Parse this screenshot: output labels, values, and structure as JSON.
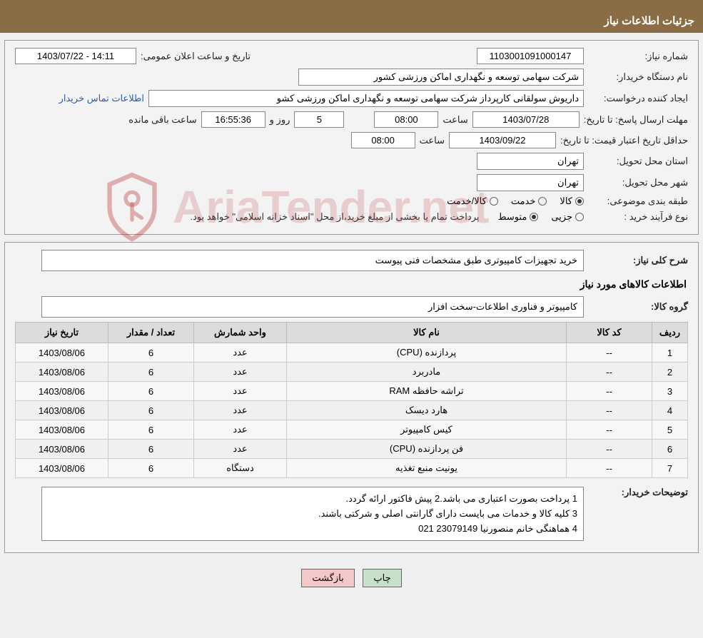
{
  "header": {
    "title": "جزئیات اطلاعات نیاز"
  },
  "form": {
    "need_no_label": "شماره نیاز:",
    "need_no": "1103001091000147",
    "announce_label": "تاریخ و ساعت اعلان عمومی:",
    "announce_val": "14:11 - 1403/07/22",
    "buyer_org_label": "نام دستگاه خریدار:",
    "buyer_org": "شرکت سهامی توسعه و نگهداری اماکن ورزشی کشور",
    "requester_label": "ایجاد کننده درخواست:",
    "requester": "داریوش سولقانی کارپرداز شرکت سهامی توسعه و نگهداری اماکن ورزشی کشو",
    "contact_link": "اطلاعات تماس خریدار",
    "deadline_label": "مهلت ارسال پاسخ: تا تاریخ:",
    "deadline_date": "1403/07/28",
    "time_word": "ساعت",
    "deadline_time": "08:00",
    "days_remaining": "5",
    "days_word": "روز و",
    "time_remaining": "16:55:36",
    "remaining_word": "ساعت باقی مانده",
    "validity_label": "حداقل تاریخ اعتبار قیمت: تا تاریخ:",
    "validity_date": "1403/09/22",
    "validity_time": "08:00",
    "province_label": "استان محل تحویل:",
    "province": "تهران",
    "city_label": "شهر محل تحویل:",
    "city": "تهران",
    "cat_label": "طبقه بندی موضوعی:",
    "cat_goods": "کالا",
    "cat_service": "خدمت",
    "cat_both": "کالا/خدمت",
    "proc_label": "نوع فرآیند خرید :",
    "proc_minor": "جزیی",
    "proc_medium": "متوسط",
    "proc_note": "پرداخت تمام یا بخشی از مبلغ خرید،از محل \"اسناد خزانه اسلامی\" خواهد بود."
  },
  "need": {
    "desc_label": "شرح کلی نیاز:",
    "desc": "خرید تجهیزات کامپیوتری طبق مشخصات فنی پیوست",
    "items_title": "اطلاعات کالاهای مورد نیاز",
    "group_label": "گروه کالا:",
    "group": "کامپیوتر و فناوری اطلاعات-سخت افزار"
  },
  "table": {
    "headers": [
      "ردیف",
      "کد کالا",
      "نام کالا",
      "واحد شمارش",
      "تعداد / مقدار",
      "تاریخ نیاز"
    ],
    "rows": [
      [
        "1",
        "--",
        "پردازنده (CPU)",
        "عدد",
        "6",
        "1403/08/06"
      ],
      [
        "2",
        "--",
        "مادربرد",
        "عدد",
        "6",
        "1403/08/06"
      ],
      [
        "3",
        "--",
        "تراشه حافظه RAM",
        "عدد",
        "6",
        "1403/08/06"
      ],
      [
        "4",
        "--",
        "هارد دیسک",
        "عدد",
        "6",
        "1403/08/06"
      ],
      [
        "5",
        "--",
        "کیس کامپیوتر",
        "عدد",
        "6",
        "1403/08/06"
      ],
      [
        "6",
        "--",
        "فن پردازنده (CPU)",
        "عدد",
        "6",
        "1403/08/06"
      ],
      [
        "7",
        "--",
        "یونیت منبع تغذیه",
        "دستگاه",
        "6",
        "1403/08/06"
      ]
    ]
  },
  "buyer_notes": {
    "label": "توضیحات خریدار:",
    "line1": "1 پرداخت بصورت اعتباری می باشد.2 پیش فاکتور ارائه گردد.",
    "line2": "3 کلیه کالا و خدمات می بایست دارای گارانتی اصلی و شرکتی  باشند.",
    "line3": "4 هماهنگی خانم منصورنیا  23079149   021"
  },
  "buttons": {
    "print": "چاپ",
    "back": "بازگشت"
  },
  "watermark": {
    "text": "AriaTender.net"
  },
  "colors": {
    "header_bg": "#8a6d44",
    "panel_bg": "#f3f3f3",
    "th_bg": "#dcdcdc",
    "link": "#2a5db0",
    "btn_print": "#c8e0c8",
    "btn_back": "#f4c8c8"
  }
}
